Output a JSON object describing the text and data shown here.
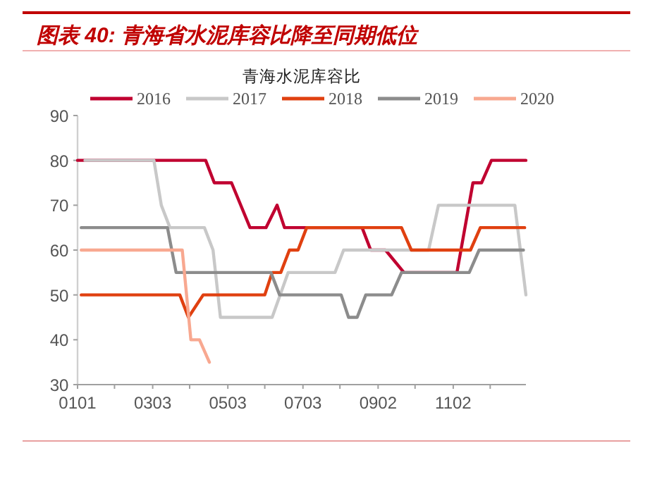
{
  "chart_data": {
    "type": "line",
    "title": "图表 40: 青海省水泥库容比降至同期低位",
    "subtitle": "青海水泥库容比",
    "xlim": [
      "--01-01",
      "--12-31"
    ],
    "ylim": [
      30,
      90
    ],
    "xticks": [
      {
        "value": "--01-01",
        "label": "0101"
      },
      {
        "value": "--01-31",
        "label": null
      },
      {
        "value": "--03-03",
        "label": "0303"
      },
      {
        "value": "--04-02",
        "label": null
      },
      {
        "value": "--05-03",
        "label": "0503"
      },
      {
        "value": "--06-02",
        "label": null
      },
      {
        "value": "--07-03",
        "label": "0703"
      },
      {
        "value": "--08-02",
        "label": null
      },
      {
        "value": "--09-02",
        "label": "0902"
      },
      {
        "value": "--10-02",
        "label": null
      },
      {
        "value": "--11-02",
        "label": "1102"
      },
      {
        "value": "--12-02",
        "label": null
      }
    ],
    "yticks": [
      30,
      40,
      50,
      60,
      70,
      80,
      90
    ],
    "legend": "top",
    "series": [
      {
        "name": "2016",
        "color": "#c00030",
        "x": [
          "--01-01",
          "--03-05",
          "--04-15",
          "--04-22",
          "--05-06",
          "--05-21",
          "--06-03",
          "--06-12",
          "--06-18",
          "--08-20",
          "--08-27",
          "--09-08",
          "--09-23",
          "--11-05",
          "--11-18",
          "--11-25",
          "--12-03",
          "--12-31"
        ],
        "values": [
          80,
          80,
          80,
          75,
          75,
          65,
          65,
          70,
          65,
          65,
          60,
          60,
          55,
          55,
          75,
          75,
          80,
          80
        ]
      },
      {
        "name": "2017",
        "color": "#c8c8c8",
        "x": [
          "--01-07",
          "--03-04",
          "--03-10",
          "--03-17",
          "--04-14",
          "--04-21",
          "--04-27",
          "--06-08",
          "--06-21",
          "--07-29",
          "--08-05",
          "--10-13",
          "--10-21",
          "--12-22",
          "--12-31"
        ],
        "values": [
          80,
          80,
          70,
          65,
          65,
          60,
          45,
          45,
          55,
          55,
          60,
          60,
          70,
          70,
          50
        ]
      },
      {
        "name": "2018",
        "color": "#e04010",
        "x": [
          "--01-04",
          "--03-25",
          "--04-01",
          "--04-13",
          "--06-02",
          "--06-08",
          "--06-15",
          "--06-22",
          "--06-29",
          "--07-06",
          "--09-21",
          "--09-29",
          "--11-16",
          "--11-24",
          "--12-30"
        ],
        "values": [
          50,
          50,
          45,
          50,
          50,
          55,
          55,
          60,
          60,
          65,
          65,
          60,
          60,
          65,
          65
        ]
      },
      {
        "name": "2019",
        "color": "#8c8c8c",
        "x": [
          "--01-04",
          "--03-15",
          "--03-22",
          "--06-07",
          "--06-14",
          "--08-03",
          "--08-09",
          "--08-16",
          "--08-23",
          "--09-13",
          "--09-21",
          "--11-15",
          "--11-23",
          "--12-29"
        ],
        "values": [
          65,
          65,
          55,
          55,
          50,
          50,
          45,
          45,
          50,
          50,
          55,
          55,
          60,
          60
        ]
      },
      {
        "name": "2020",
        "color": "#f8a890",
        "x": [
          "--01-04",
          "--03-27",
          "--04-03",
          "--04-10",
          "--04-18"
        ],
        "values": [
          60,
          60,
          40,
          40,
          35
        ]
      }
    ]
  }
}
